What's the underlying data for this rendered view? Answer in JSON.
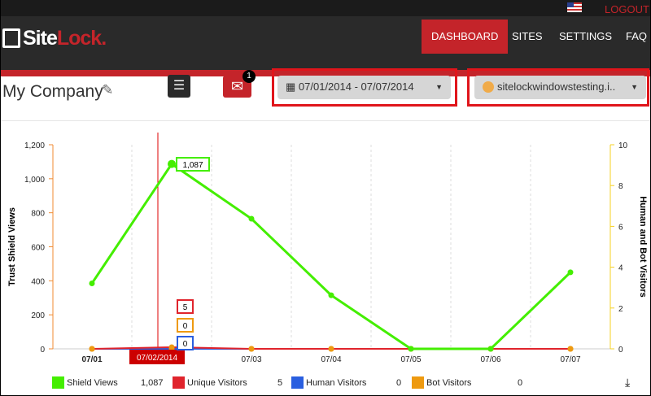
{
  "header": {
    "logout": "LOGOUT",
    "logo_site": "Site",
    "logo_lock": "Lock",
    "logo_dot": ".",
    "nav": [
      {
        "label": "DASHBOARD",
        "active": true
      },
      {
        "label": "SITES"
      },
      {
        "label": "SETTINGS"
      },
      {
        "label": "FAQ"
      }
    ]
  },
  "toolbar": {
    "company": "My Company",
    "mail_badge": "1",
    "date_range": "07/01/2014 - 07/07/2014",
    "site": "sitelockwindowstesting.i.."
  },
  "colors": {
    "shield": "#44ee00",
    "unique": "#e0242c",
    "human": "#2a5fe0",
    "bot": "#ee9a10",
    "accent": "#c4242a"
  },
  "chart_data": {
    "type": "line",
    "categories": [
      "07/01",
      "07/02",
      "07/03",
      "07/04",
      "07/05",
      "07/06",
      "07/07"
    ],
    "ylabel": "Trust Shield Views",
    "y2label": "Human and Bot Visitors",
    "ylim": [
      0,
      1200
    ],
    "yticks": [
      "0",
      "200",
      "400",
      "600",
      "800",
      "1,000",
      "1,200"
    ],
    "y2lim": [
      0,
      10
    ],
    "y2ticks": [
      "0",
      "2",
      "4",
      "6",
      "8",
      "10"
    ],
    "hover_label": "07/02/2014",
    "series": [
      {
        "name": "Shield Views",
        "total": "1,087",
        "values": [
          385,
          1087,
          765,
          315,
          0,
          0,
          450
        ]
      },
      {
        "name": "Unique Visitors",
        "total": "5",
        "values": [
          0,
          5,
          0,
          0,
          0,
          0,
          0
        ]
      },
      {
        "name": "Human Visitors",
        "total": "0",
        "values": [
          0,
          0,
          0,
          0,
          0,
          0,
          0
        ]
      },
      {
        "name": "Bot Visitors",
        "total": "0",
        "values": [
          0,
          0,
          0,
          0,
          0,
          0,
          0
        ]
      }
    ],
    "tooltips": {
      "shield": "1,087",
      "unique": "5",
      "bot": "0",
      "human": "0"
    }
  }
}
